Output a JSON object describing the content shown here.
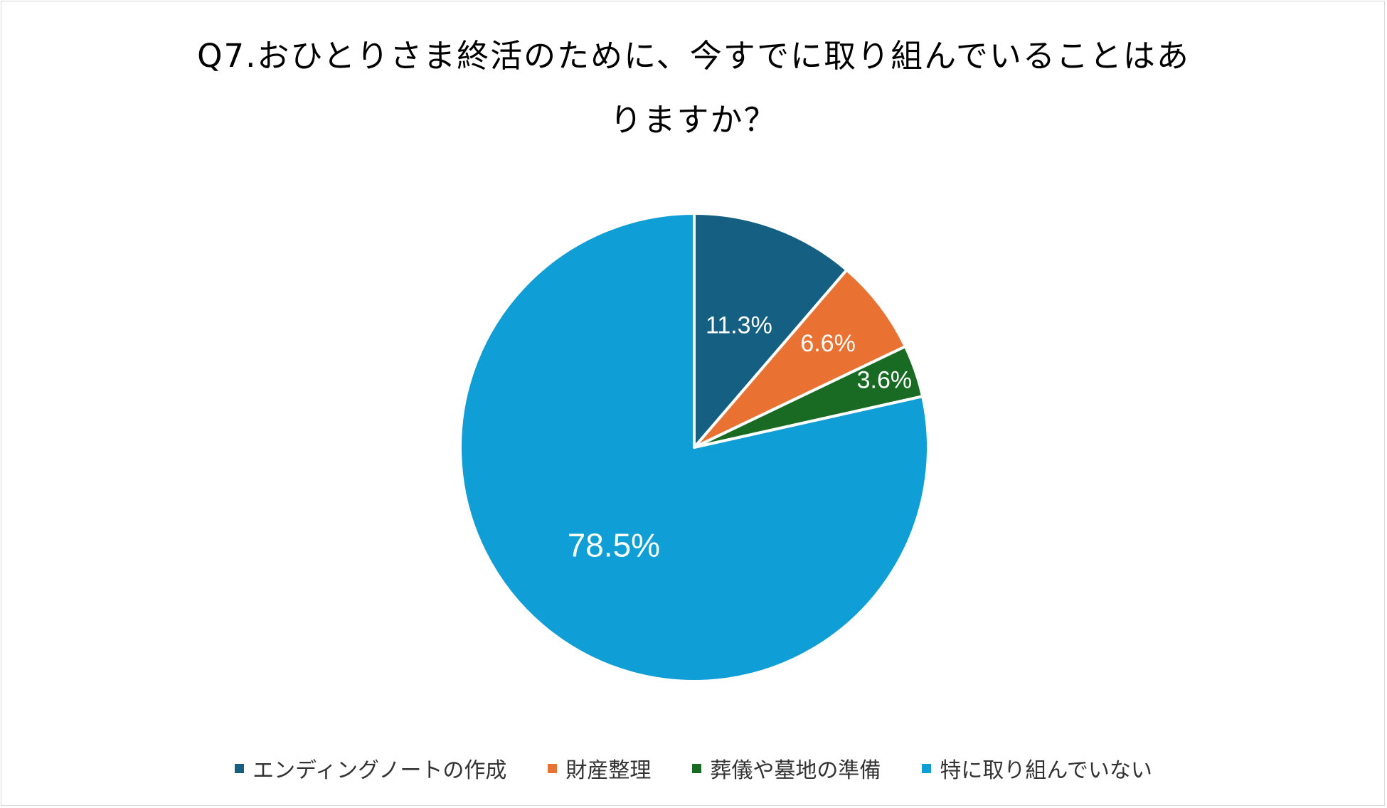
{
  "chart_data": {
    "type": "pie",
    "title": "Q7.おひとりさま終活のために、今すでに取り組んでいることはありますか？",
    "title_lines": [
      "Q7.おひとりさま終活のために、今すでに取り組んでいることはあ",
      "りますか？"
    ],
    "categories": [
      "エンディングノートの作成",
      "財産整理",
      "葬儀や墓地の準備",
      "特に取り組んでいない"
    ],
    "values": [
      11.3,
      6.6,
      3.6,
      78.5
    ],
    "labels": [
      "11.3%",
      "6.6%",
      "3.6%",
      "78.5%"
    ],
    "colors": [
      "#155f82",
      "#e97132",
      "#196b24",
      "#0f9ed5"
    ],
    "legend_position": "bottom",
    "start_angle": "12 o'clock",
    "direction": "clockwise"
  }
}
